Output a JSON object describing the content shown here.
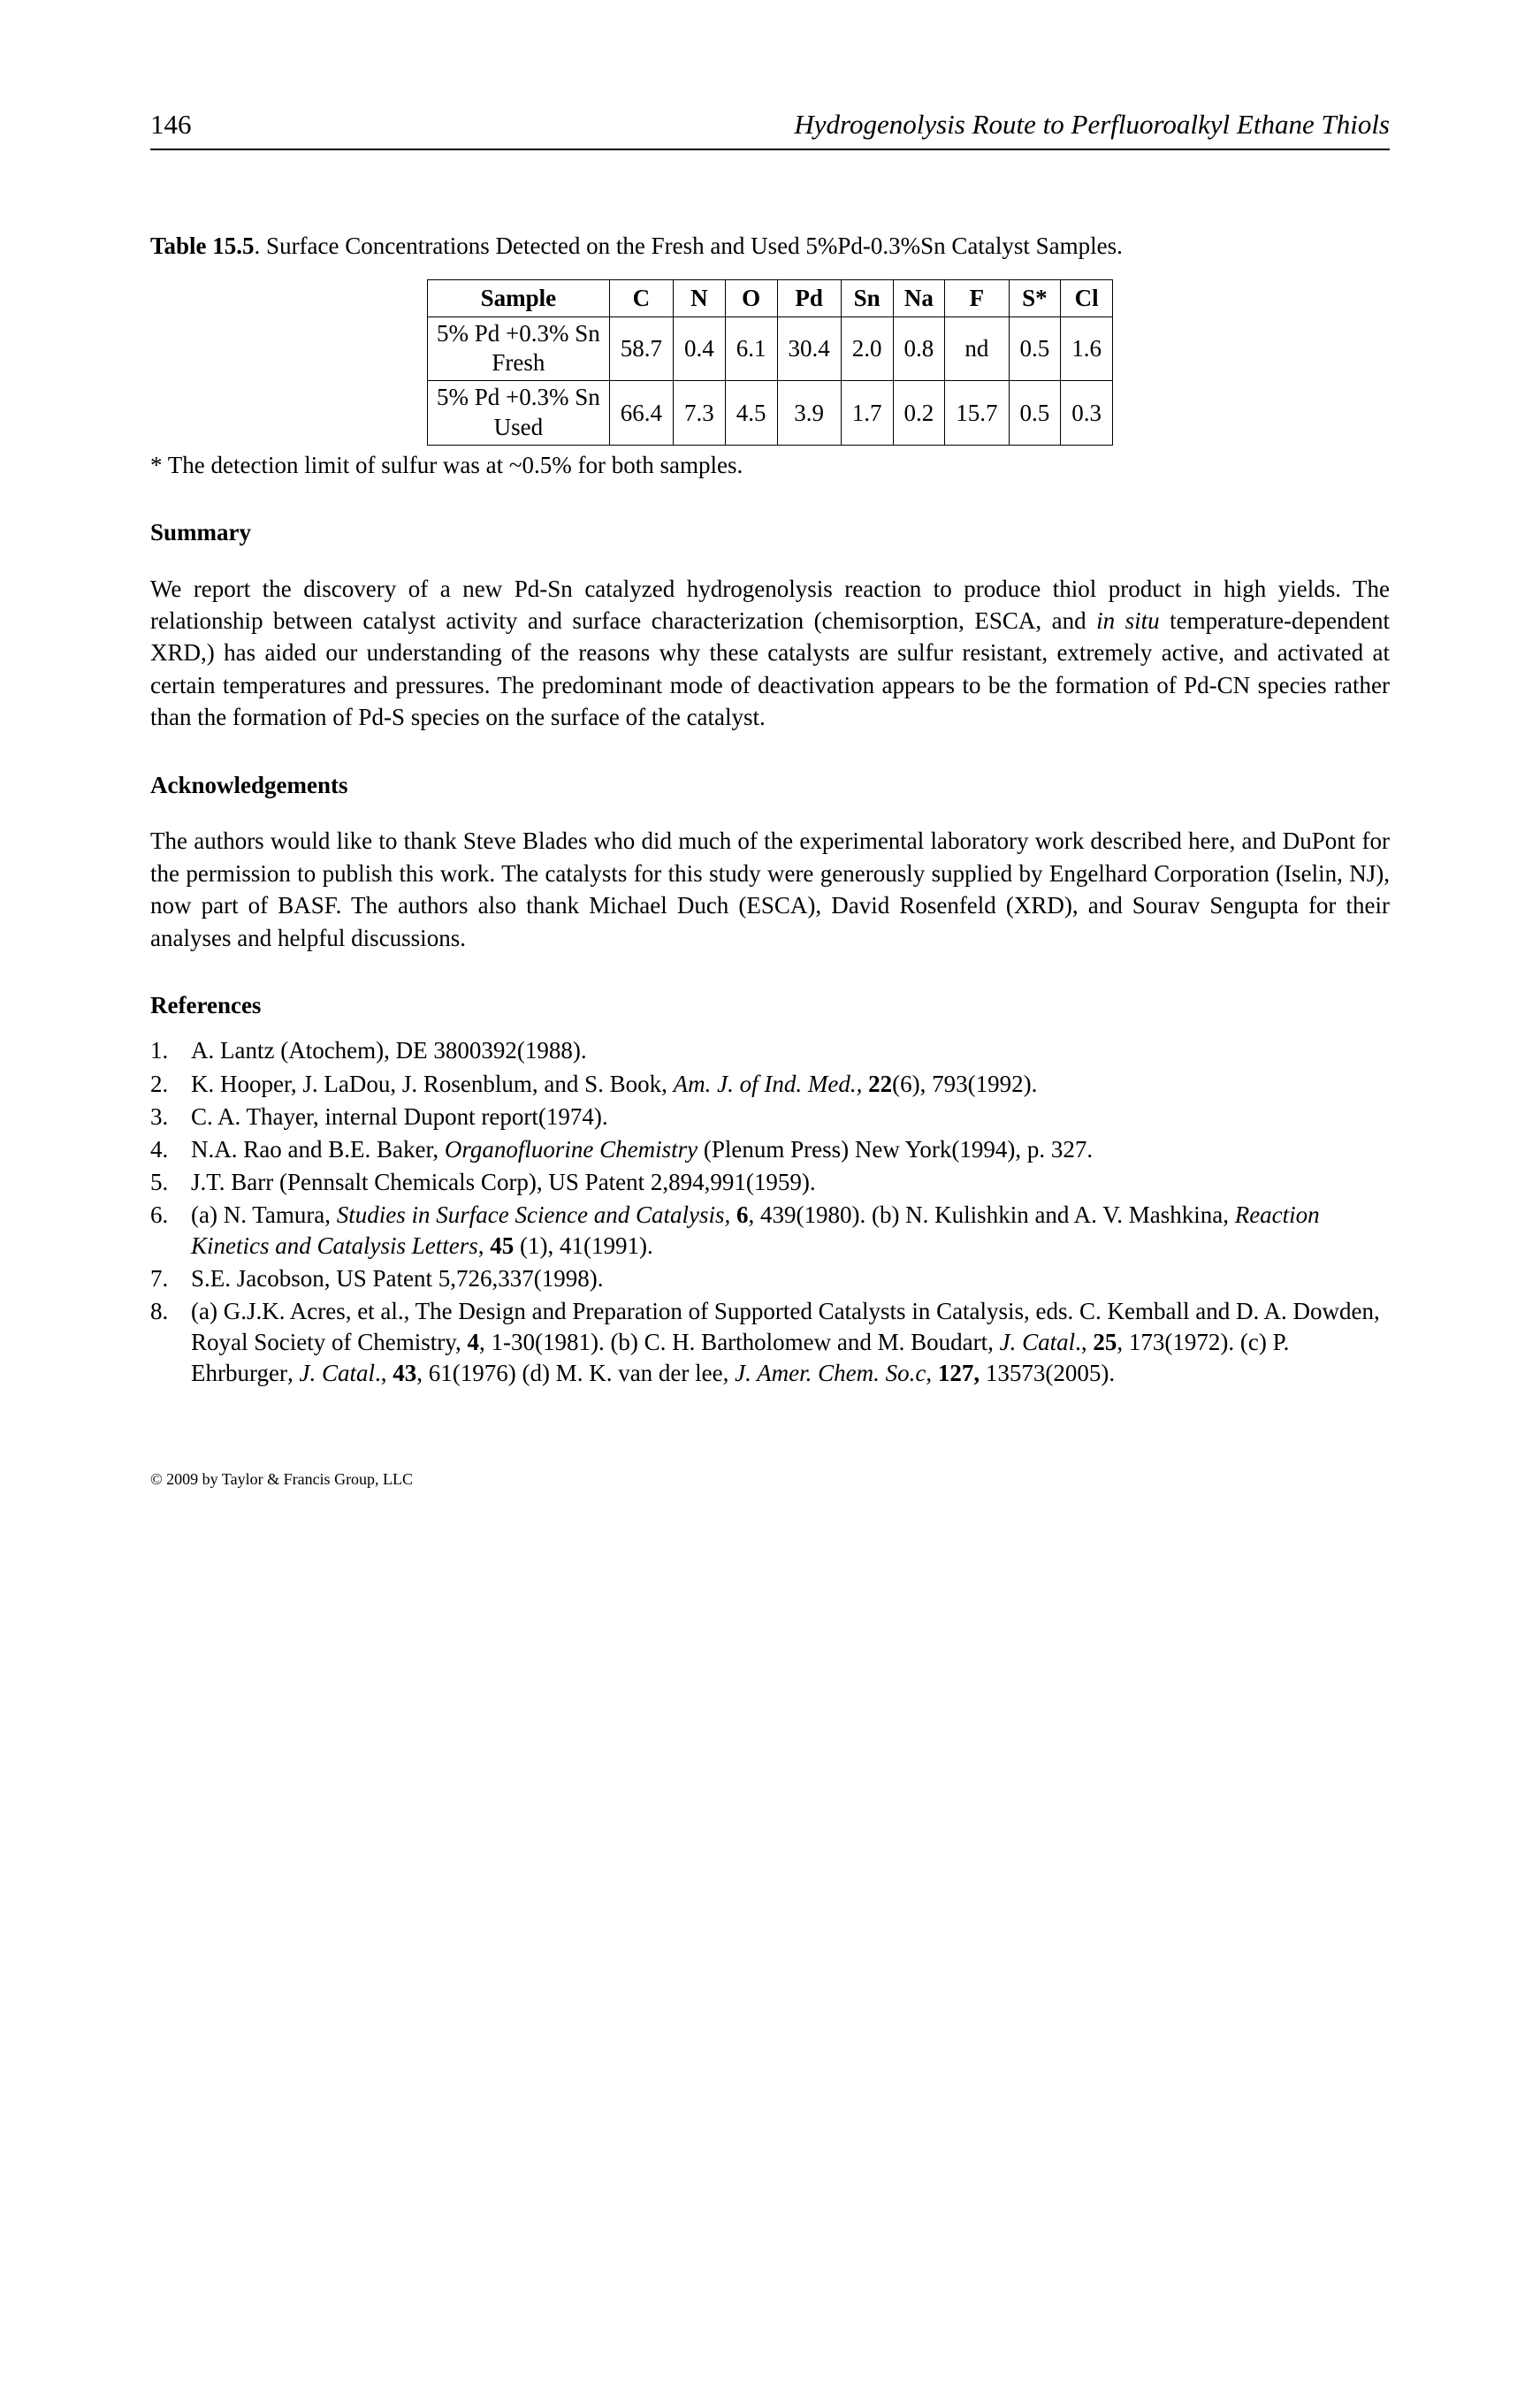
{
  "page": {
    "number": "146",
    "running_title": "Hydrogenolysis Route to Perfluoroalkyl Ethane Thiols"
  },
  "table": {
    "caption_label": "Table 15.5",
    "caption_text": ". Surface Concentrations Detected on the Fresh and Used 5%Pd-0.3%Sn Catalyst Samples.",
    "columns": [
      "Sample",
      "C",
      "N",
      "O",
      "Pd",
      "Sn",
      "Na",
      "F",
      "S*",
      "Cl"
    ],
    "rows": [
      {
        "sample_l1": "5% Pd +0.3% Sn",
        "sample_l2": "Fresh",
        "cells": [
          "58.7",
          "0.4",
          "6.1",
          "30.4",
          "2.0",
          "0.8",
          "nd",
          "0.5",
          "1.6"
        ]
      },
      {
        "sample_l1": "5% Pd +0.3% Sn",
        "sample_l2": "Used",
        "cells": [
          "66.4",
          "7.3",
          "4.5",
          "3.9",
          "1.7",
          "0.2",
          "15.7",
          "0.5",
          "0.3"
        ]
      }
    ],
    "note": "* The detection limit of sulfur was at ~0.5% for both samples."
  },
  "summary": {
    "heading": "Summary",
    "text_prefix": "We report the discovery of a new Pd-Sn catalyzed hydrogenolysis reaction to produce thiol product in high yields.  The relationship between catalyst activity and surface characterization (chemisorption, ESCA, and ",
    "text_italic": "in situ",
    "text_suffix": " temperature-dependent XRD,) has aided our understanding of the reasons why these catalysts are sulfur resistant, extremely active, and activated at certain temperatures and pressures.  The predominant mode of deactivation appears to be the formation of Pd-CN species rather than the formation of Pd-S species on the surface of the catalyst."
  },
  "ack": {
    "heading": "Acknowledgements",
    "text": "The authors would like to thank Steve Blades who did much of the experimental laboratory work described here, and DuPont for the permission to publish this work. The catalysts for this study were generously supplied by Engelhard Corporation (Iselin, NJ), now part of BASF.  The authors also thank Michael Duch (ESCA), David Rosenfeld (XRD), and Sourav Sengupta for their analyses and helpful discussions."
  },
  "refs": {
    "heading": "References",
    "items": [
      {
        "n": "1.",
        "html": "A. Lantz (Atochem),  DE 3800392(1988)."
      },
      {
        "n": "2.",
        "html": "K. Hooper, J. LaDou, J. Rosenblum, and S. Book, <span class=\"i\">Am. J.  of Ind. Med.,</span> <span class=\"b\">22</span>(6), 793(1992)."
      },
      {
        "n": "3.",
        "html": "C. A. Thayer, internal Dupont report(1974)."
      },
      {
        "n": "4.",
        "html": "N.A. Rao and B.E. Baker, <span class=\"i\">Organofluorine Chemistry</span> (Plenum Press) New York(1994), p. 327."
      },
      {
        "n": "5.",
        "html": "J.T. Barr (Pennsalt Chemicals Corp), US Patent 2,894,991(1959)."
      },
      {
        "n": "6.",
        "html": " (a) N. Tamura, <span class=\"i\">Studies in Surface Science and Catalysis,</span> <span class=\"b\">6</span>, 439(1980). (b) N. Kulishkin and A. V. Mashkina, <span class=\"i\">Reaction Kinetics and Catalysis Letters</span>, <span class=\"b\">45</span> (1), 41(1991)."
      },
      {
        "n": "7.",
        "html": " S.E. Jacobson, US Patent 5,726,337(1998)."
      },
      {
        "n": "8.",
        "html": "(a) G.J.K. Acres, et al., The Design and Preparation of Supported Catalysts in Catalysis, eds. C. Kemball and D. A. Dowden, Royal Society of Chemistry, <span class=\"b\">4</span>, 1-30(1981). (b) C. H. Bartholomew and M. Boudart<span class=\"i\">, J. Catal</span>., <span class=\"b\">25</span>, 173(1972). (c) P. Ehrburger<span class=\"i\">, J. Catal</span>., <span class=\"b\">43</span>, 61(1976) (d) M. K. van der lee, <span class=\"i\">J. Amer. Chem. So.c</span>, <span class=\"b\">127,</span> 13573(2005)."
      }
    ]
  },
  "footer": "© 2009 by Taylor & Francis Group, LLC"
}
